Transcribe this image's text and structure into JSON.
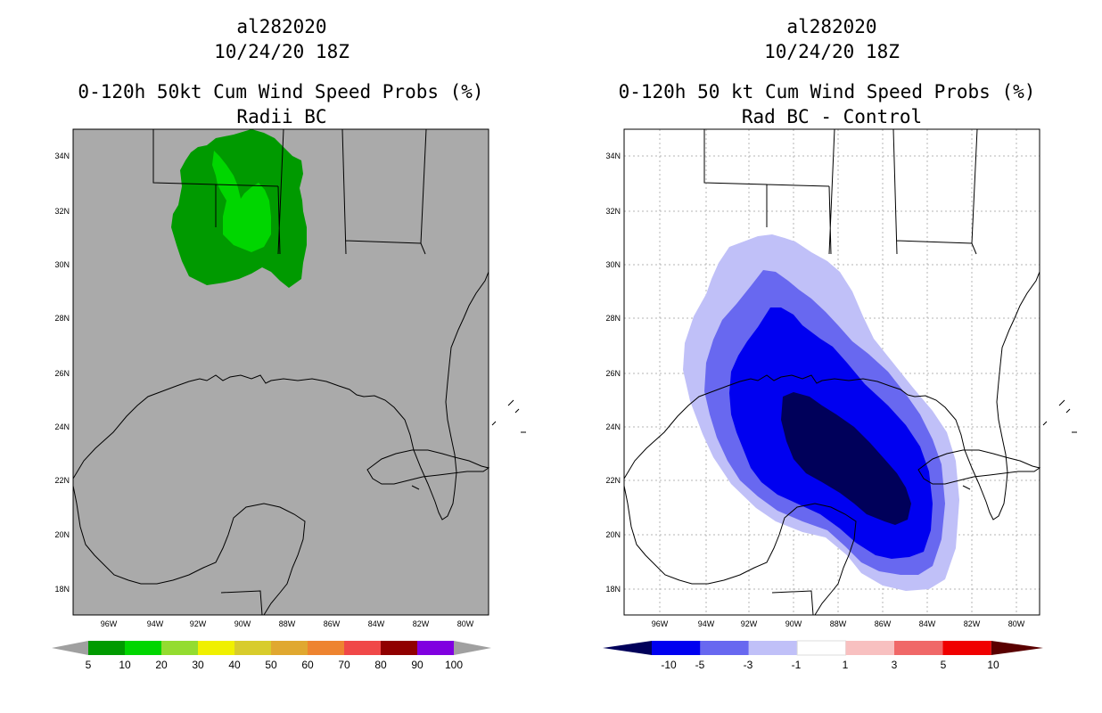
{
  "left_panel": {
    "storm_id": "al282020",
    "cycle": "10/24/20 18Z",
    "product": "0-120h 50kt Cum Wind Speed Probs (%)",
    "subtitle": "Radii BC",
    "background_color": "#aaaaaa",
    "colorbar": {
      "labels": [
        "5",
        "10",
        "20",
        "30",
        "40",
        "50",
        "60",
        "70",
        "80",
        "90",
        "100"
      ],
      "colors": [
        "#009a00",
        "#00d600",
        "#94dc30",
        "#f0f000",
        "#d8cc2c",
        "#e0a830",
        "#ee8430",
        "#f04848",
        "#900000",
        "#8000e0"
      ],
      "arrow_color": "#a0a0a0"
    },
    "contour_colors": [
      "#009a00",
      "#00d600"
    ]
  },
  "right_panel": {
    "storm_id": "al282020",
    "cycle": "10/24/20 18Z",
    "product": "0-120h 50 kt Cum Wind Speed Probs (%)",
    "subtitle": "Rad BC - Control",
    "background_color": "#ffffff",
    "colorbar": {
      "labels": [
        "-10",
        "-5",
        "-3",
        "-1",
        "1",
        "3",
        "5",
        "10"
      ],
      "colors": [
        "#0000f0",
        "#6868f0",
        "#c0c0f8",
        "#ffffff",
        "#f8c0c0",
        "#f06868",
        "#f00000"
      ],
      "left_arrow_color": "#00005a",
      "right_arrow_color": "#5a0000"
    },
    "contour_colors": [
      "#c0c0f8",
      "#6868f0",
      "#0000f0",
      "#00005a"
    ]
  },
  "map_axes": {
    "lon_labels": [
      "96W",
      "94W",
      "92W",
      "90W",
      "88W",
      "86W",
      "84W",
      "82W",
      "80W"
    ],
    "lat_labels": [
      "34N",
      "32N",
      "30N",
      "28N",
      "26N",
      "24N",
      "22N",
      "20N",
      "18N"
    ]
  }
}
